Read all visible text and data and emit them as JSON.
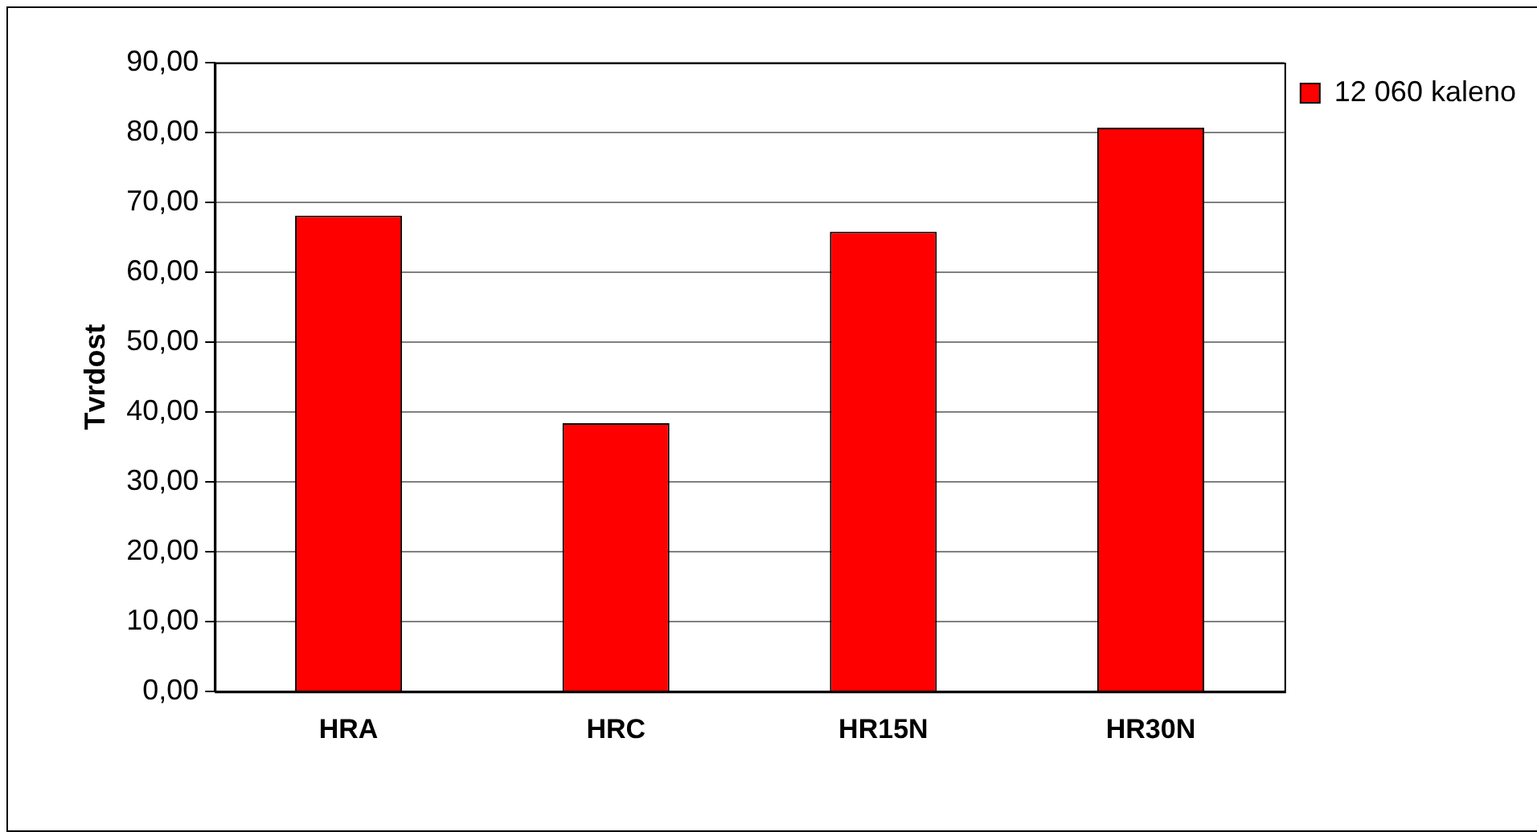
{
  "chart_data": {
    "type": "bar",
    "ylabel": "Tvrdost",
    "categories": [
      "HRA",
      "HRC",
      "HR15N",
      "HR30N"
    ],
    "series": [
      {
        "name": "12 060 kaleno",
        "color": "#ff0000",
        "values": [
          68.1,
          38.4,
          65.8,
          80.7
        ]
      }
    ],
    "ylim": [
      0,
      90
    ],
    "yticks": [
      {
        "value": 0,
        "label": "0,00"
      },
      {
        "value": 10,
        "label": "10,00"
      },
      {
        "value": 20,
        "label": "20,00"
      },
      {
        "value": 30,
        "label": "30,00"
      },
      {
        "value": 40,
        "label": "40,00"
      },
      {
        "value": 50,
        "label": "50,00"
      },
      {
        "value": 60,
        "label": "60,00"
      },
      {
        "value": 70,
        "label": "70,00"
      },
      {
        "value": 80,
        "label": "80,00"
      },
      {
        "value": 90,
        "label": "90,00"
      }
    ],
    "grid": "y",
    "legend": "top right"
  }
}
